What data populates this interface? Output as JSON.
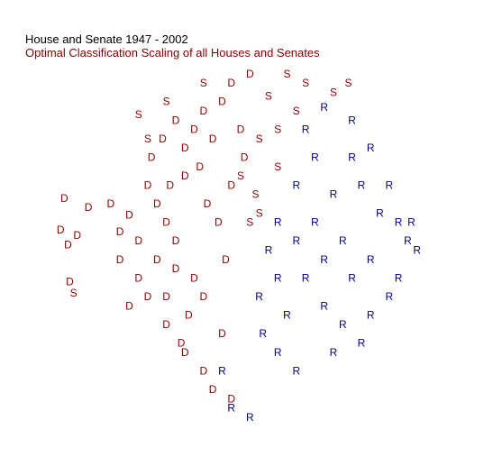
{
  "chart_data": {
    "type": "scatter",
    "title": "House and Senate  1947 - 2002",
    "subtitle": "Optimal Classification Scaling of all Houses and Senates",
    "xlabel": "",
    "ylabel": "",
    "xlim": [
      -1,
      1
    ],
    "ylim": [
      -1,
      1
    ],
    "grid": false,
    "colors": {
      "title": "#000000",
      "subtitle": "#800000",
      "D": "#8b0000",
      "S": "#8b0000",
      "R": "#000080"
    },
    "series": [
      {
        "marker": "D",
        "points": [
          [
            -0.95,
            0.23
          ],
          [
            -0.97,
            0.06
          ],
          [
            -0.93,
            -0.02
          ],
          [
            -0.88,
            0.03
          ],
          [
            -0.92,
            -0.22
          ],
          [
            -0.82,
            0.18
          ],
          [
            -0.7,
            0.2
          ],
          [
            -0.6,
            0.14
          ],
          [
            -0.65,
            0.05
          ],
          [
            -0.6,
            -0.35
          ],
          [
            -0.55,
            -0.2
          ],
          [
            -0.65,
            -0.1
          ],
          [
            -0.5,
            0.3
          ],
          [
            -0.45,
            0.2
          ],
          [
            -0.4,
            0.1
          ],
          [
            -0.35,
            0.0
          ],
          [
            -0.3,
            0.5
          ],
          [
            -0.25,
            0.6
          ],
          [
            -0.2,
            0.7
          ],
          [
            -0.1,
            0.75
          ],
          [
            -0.05,
            0.85
          ],
          [
            0.05,
            0.9
          ],
          [
            -0.28,
            -0.4
          ],
          [
            -0.32,
            -0.55
          ],
          [
            -0.2,
            -0.7
          ],
          [
            -0.15,
            -0.8
          ],
          [
            -0.05,
            -0.85
          ],
          [
            -0.4,
            -0.3
          ],
          [
            -0.45,
            -0.1
          ],
          [
            -0.38,
            0.3
          ],
          [
            -0.3,
            0.35
          ],
          [
            -0.22,
            0.4
          ],
          [
            -0.18,
            0.2
          ],
          [
            -0.12,
            0.1
          ],
          [
            -0.08,
            -0.1
          ],
          [
            -0.25,
            -0.2
          ],
          [
            -0.35,
            -0.15
          ],
          [
            -0.15,
            0.55
          ],
          [
            0.0,
            0.6
          ],
          [
            -0.2,
            -0.3
          ],
          [
            -0.1,
            -0.5
          ],
          [
            -0.3,
            -0.6
          ],
          [
            -0.4,
            -0.45
          ],
          [
            -0.5,
            -0.3
          ],
          [
            -0.55,
            0.0
          ],
          [
            -0.48,
            0.45
          ],
          [
            -0.42,
            0.55
          ],
          [
            -0.35,
            0.65
          ],
          [
            0.02,
            0.45
          ],
          [
            -0.05,
            0.3
          ]
        ]
      },
      {
        "marker": "S",
        "points": [
          [
            -0.9,
            -0.28
          ],
          [
            -0.55,
            0.68
          ],
          [
            -0.4,
            0.75
          ],
          [
            -0.5,
            0.55
          ],
          [
            0.35,
            0.85
          ],
          [
            0.5,
            0.8
          ],
          [
            0.58,
            0.85
          ],
          [
            0.3,
            0.7
          ],
          [
            0.2,
            0.6
          ],
          [
            0.1,
            0.55
          ],
          [
            0.08,
            0.25
          ],
          [
            0.1,
            0.15
          ],
          [
            0.0,
            0.35
          ],
          [
            0.25,
            0.9
          ],
          [
            -0.2,
            0.85
          ],
          [
            0.15,
            0.78
          ],
          [
            0.05,
            0.1
          ],
          [
            0.2,
            0.4
          ]
        ]
      },
      {
        "marker": "R",
        "points": [
          [
            0.3,
            -0.7
          ],
          [
            0.5,
            -0.6
          ],
          [
            0.7,
            -0.4
          ],
          [
            0.85,
            -0.2
          ],
          [
            0.9,
            0.0
          ],
          [
            0.92,
            0.1
          ],
          [
            0.95,
            -0.05
          ],
          [
            0.8,
            0.3
          ],
          [
            0.7,
            0.5
          ],
          [
            0.6,
            0.65
          ],
          [
            0.45,
            0.72
          ],
          [
            0.35,
            0.6
          ],
          [
            0.2,
            0.1
          ],
          [
            0.15,
            -0.05
          ],
          [
            0.1,
            -0.3
          ],
          [
            0.12,
            -0.5
          ],
          [
            0.2,
            -0.6
          ],
          [
            -0.05,
            -0.9
          ],
          [
            0.05,
            -0.95
          ],
          [
            -0.1,
            -0.7
          ],
          [
            0.55,
            0.0
          ],
          [
            0.6,
            -0.2
          ],
          [
            0.45,
            -0.35
          ],
          [
            0.35,
            -0.2
          ],
          [
            0.4,
            0.1
          ],
          [
            0.5,
            0.25
          ],
          [
            0.65,
            0.3
          ],
          [
            0.75,
            0.15
          ],
          [
            0.3,
            0.3
          ],
          [
            0.25,
            -0.4
          ],
          [
            0.55,
            -0.45
          ],
          [
            0.7,
            -0.1
          ],
          [
            0.85,
            0.1
          ],
          [
            0.6,
            0.45
          ],
          [
            0.4,
            0.45
          ],
          [
            0.8,
            -0.3
          ],
          [
            0.65,
            -0.55
          ],
          [
            0.2,
            -0.2
          ],
          [
            0.3,
            0.0
          ],
          [
            0.45,
            -0.1
          ]
        ]
      }
    ]
  }
}
